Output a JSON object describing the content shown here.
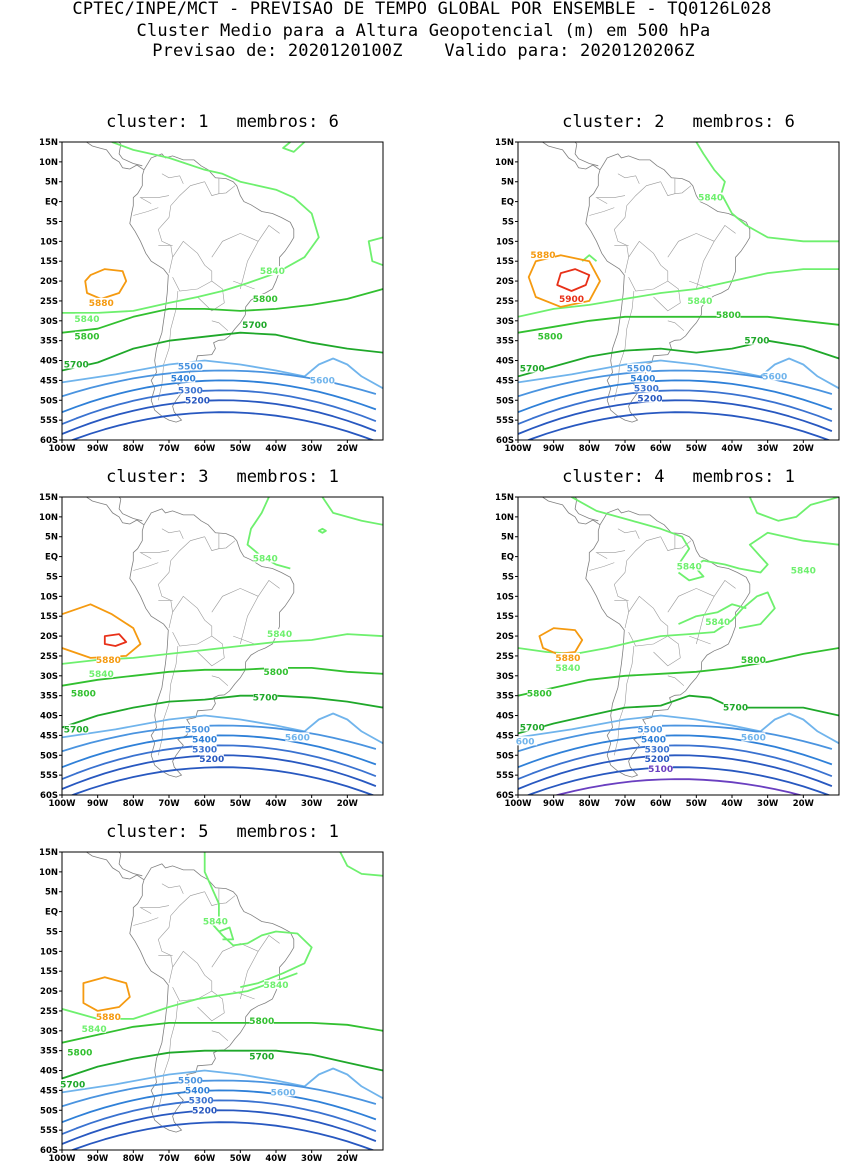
{
  "header": {
    "line1": "CPTEC/INPE/MCT - PREVISAO DE TEMPO GLOBAL POR ENSEMBLE - TQ0126L028",
    "line2": "Cluster Medio para a Altura Geopotencial (m) em 500 hPa",
    "line3_forecast": "Previsao de: 2020120100Z",
    "line3_valid": "Valido para: 2020120206Z"
  },
  "axes": {
    "lat_labels": [
      "15N",
      "10N",
      "5N",
      "EQ",
      "5S",
      "10S",
      "15S",
      "20S",
      "25S",
      "30S",
      "35S",
      "40S",
      "45S",
      "50S",
      "55S",
      "60S"
    ],
    "lon_labels": [
      "100W",
      "90W",
      "80W",
      "70W",
      "60W",
      "50W",
      "40W",
      "30W",
      "20W"
    ]
  },
  "colors": {
    "c5100": "#6a3fc0",
    "c5200": "#2858c0",
    "c5300": "#3a72d0",
    "c5400": "#2f80d8",
    "c5500": "#4a94e0",
    "c5600": "#70b4ec",
    "c5700": "#1fa82a",
    "c5800": "#32c030",
    "c5840": "#6ef06e",
    "c5880": "#f59a10",
    "c5900": "#e83018",
    "coast": "#808080"
  },
  "panels": [
    {
      "cluster_word": "cluster:",
      "cluster": "1",
      "members_word": "membros:",
      "members": "6",
      "labels": {
        "l5880": "5880",
        "l5840a": "5840",
        "l5840b": "5840",
        "l5800a": "5800",
        "l5800b": "5800",
        "l5700a": "5700",
        "l5700b": "5700",
        "l5600": "5600",
        "l5500": "5500",
        "l5400": "5400",
        "l5300": "5300",
        "l5200": "5200"
      }
    },
    {
      "cluster_word": "cluster:",
      "cluster": "2",
      "members_word": "membros:",
      "members": "6",
      "labels": {
        "l5880": "5880",
        "l5900": "5900",
        "l5840a": "5840",
        "l5840b": "5840",
        "l5800a": "5800",
        "l5800b": "5800",
        "l5700a": "5700",
        "l5700b": "5700",
        "l5600": "5600",
        "l5500": "5500",
        "l5400": "5400",
        "l5300": "5300",
        "l5200": "5200"
      }
    },
    {
      "cluster_word": "cluster:",
      "cluster": "3",
      "members_word": "membros:",
      "members": "1",
      "labels": {
        "l5880": "5880",
        "l5840a": "5840",
        "l5840b": "5840",
        "l5840c": "5840",
        "l5800a": "5800",
        "l5800b": "5800",
        "l5700a": "5700",
        "l5700b": "5700",
        "l5600": "5600",
        "l5500": "5500",
        "l5400": "5400",
        "l5300": "5300",
        "l5200": "5200"
      }
    },
    {
      "cluster_word": "cluster:",
      "cluster": "4",
      "members_word": "membros:",
      "members": "1",
      "labels": {
        "l5880": "5880",
        "l5840a": "5840",
        "l5840b": "5840",
        "l5840c": "5840",
        "l5840d": "5840",
        "l5800a": "5800",
        "l5800b": "5800",
        "l5700a": "5700",
        "l5700b": "5700",
        "l5600a": "600",
        "l5600": "5600",
        "l5500": "5500",
        "l5400": "5400",
        "l5300": "5300",
        "l5200": "5200",
        "l5100": "5100"
      }
    },
    {
      "cluster_word": "cluster:",
      "cluster": "5",
      "members_word": "membros:",
      "members": "1",
      "labels": {
        "l5880": "5880",
        "l5840a": "5840",
        "l5840b": "5840",
        "l5840c": "5840",
        "l5800a": "5800",
        "l5800b": "5800",
        "l5700a": "5700",
        "l5700b": "5700",
        "l5600": "5600",
        "l5500": "5500",
        "l5400": "5400",
        "l5300": "5300",
        "l5200": "5200"
      }
    }
  ]
}
